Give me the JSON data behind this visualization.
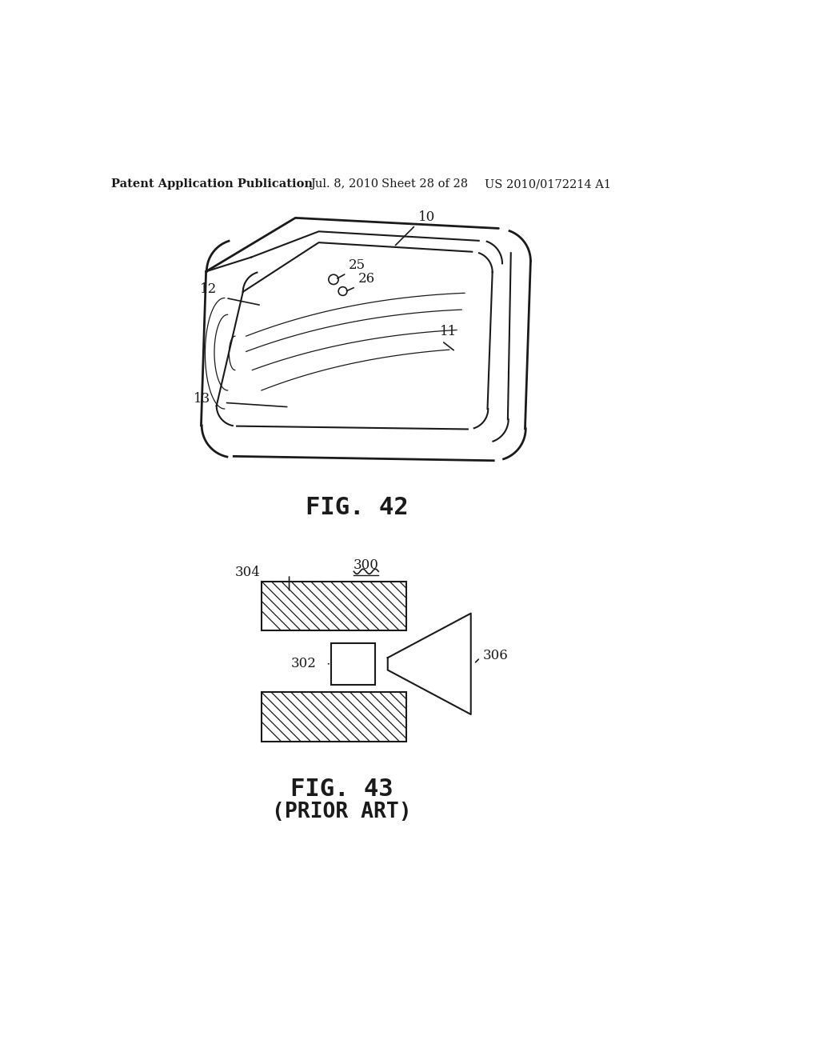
{
  "bg_color": "#ffffff",
  "header_text": "Patent Application Publication",
  "header_date": "Jul. 8, 2010",
  "header_sheet": "Sheet 28 of 28",
  "header_patent": "US 2010/0172214 A1",
  "fig42_label": "FIG. 42",
  "fig43_label": "FIG. 43",
  "fig43_sublabel": "(PRIOR ART)",
  "label_10": "10",
  "label_11": "11",
  "label_12": "12",
  "label_13": "13",
  "label_25": "25",
  "label_26": "26",
  "label_300": "300",
  "label_302": "302",
  "label_304": "304",
  "label_306": "306"
}
